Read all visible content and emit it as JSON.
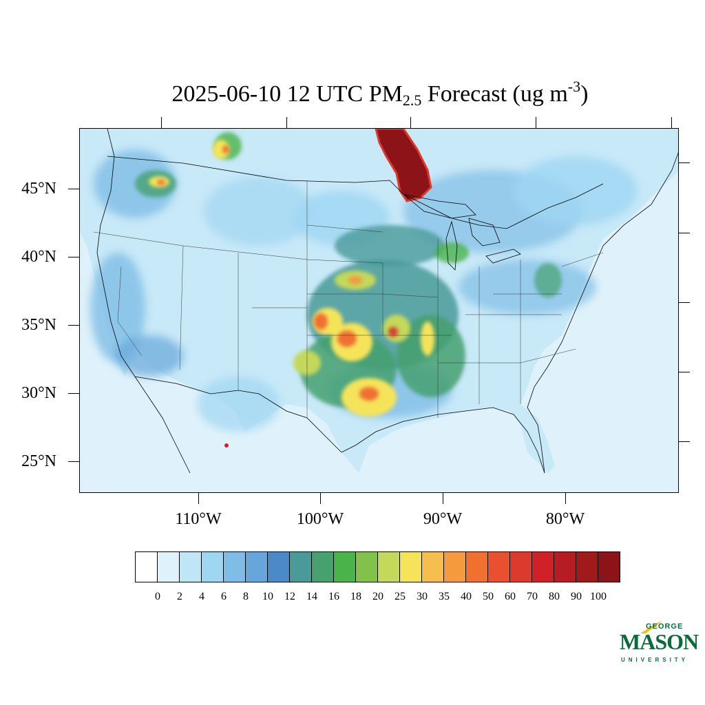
{
  "title": {
    "prefix": "2025-06-10 12 UTC PM",
    "subscript": "2.5",
    "middle": " Forecast (ug m",
    "superscript": "-3",
    "suffix": ")"
  },
  "map": {
    "projection": "lambert-conformal",
    "region": "Contiguous United States",
    "lat_labels": [
      "45°N",
      "40°N",
      "35°N",
      "30°N",
      "25°N"
    ],
    "lon_labels": [
      "110°W",
      "100°W",
      "90°W",
      "80°W"
    ],
    "ocean_color": "#dff2fb",
    "boundaries": [
      "coastline",
      "state-borders",
      "country-borders",
      "great-lakes"
    ],
    "notable_features": [
      {
        "name": "smoke-plume",
        "location": "Ontario / north of Lake Superior",
        "level": ">100"
      },
      {
        "name": "elevated-pm",
        "location": "Southern Plains (Kansas, Oklahoma, Texas, Arkansas)",
        "level": "25-60"
      },
      {
        "name": "elevated-pm",
        "location": "Mississippi Valley",
        "level": "16-40"
      }
    ]
  },
  "colorbar": {
    "labels": [
      "0",
      "2",
      "4",
      "6",
      "8",
      "10",
      "12",
      "14",
      "16",
      "18",
      "20",
      "25",
      "30",
      "35",
      "40",
      "50",
      "60",
      "70",
      "80",
      "90",
      "100"
    ],
    "colors": [
      "#ffffff",
      "#dff2fb",
      "#bfe6f7",
      "#9fd6f2",
      "#80bde6",
      "#66a6da",
      "#4a8ac8",
      "#4a9a9a",
      "#46a070",
      "#4ab44a",
      "#80c24a",
      "#c4d85a",
      "#f5e45a",
      "#f6be4e",
      "#f59a3e",
      "#f07030",
      "#e85030",
      "#dc3a2c",
      "#d02028",
      "#b61c22",
      "#a01a1c",
      "#8c1418"
    ]
  },
  "logo": {
    "top_text": "GEORGE",
    "main_text": "MASON",
    "bottom_text": "UNIVERSITY",
    "color": "#0b6b3a",
    "accent": "#f5c200"
  }
}
